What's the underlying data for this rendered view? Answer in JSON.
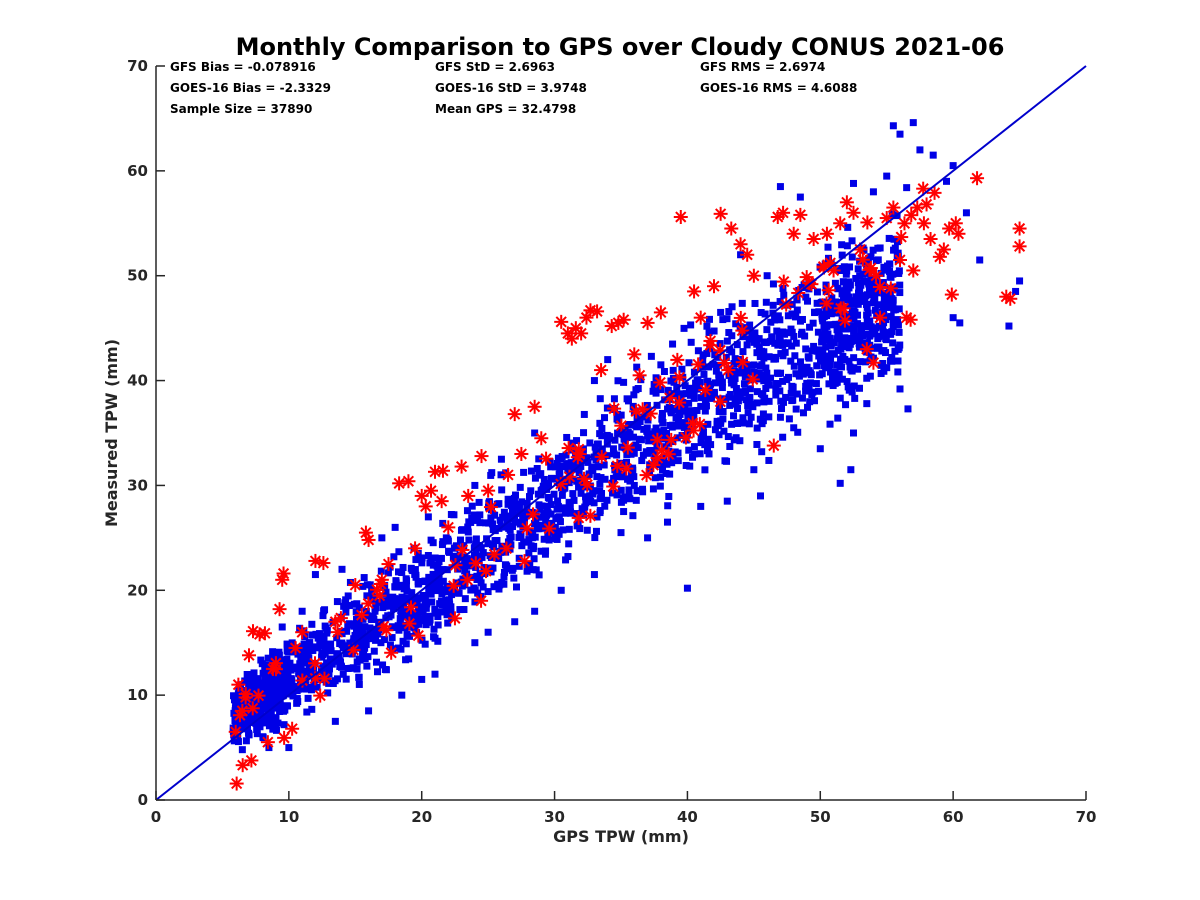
{
  "chart_data": {
    "type": "scatter",
    "title": "Monthly Comparison to GPS over Cloudy CONUS 2021-06",
    "xlabel": "GPS TPW (mm)",
    "ylabel": "Measured TPW (mm)",
    "xlim": [
      0,
      70
    ],
    "ylim": [
      0,
      70
    ],
    "xticks": [
      "0",
      "10",
      "20",
      "30",
      "40",
      "50",
      "60",
      "70"
    ],
    "yticks": [
      "0",
      "10",
      "20",
      "30",
      "40",
      "50",
      "60",
      "70"
    ],
    "grid": false,
    "reference_line": {
      "x": [
        0,
        70
      ],
      "y": [
        0,
        70
      ],
      "color": "#0000cc"
    },
    "stats": [
      [
        "GFS Bias = -0.078916",
        "GFS StD = 2.6963",
        "GFS RMS = 2.6974"
      ],
      [
        "GOES-16 Bias = -2.3329",
        "GOES-16 StD = 3.9748",
        "GOES-16 RMS = 4.6088"
      ],
      [
        "Sample Size = 37890",
        "Mean GPS = 32.4798",
        ""
      ]
    ],
    "series": [
      {
        "marker": "asterisk",
        "color": "#ff0000",
        "points": [
          [
            6.0,
            6.5
          ],
          [
            6.2,
            11.0
          ],
          [
            6.5,
            8.5
          ],
          [
            7.0,
            13.8
          ],
          [
            7.3,
            16.1
          ],
          [
            7.8,
            15.8
          ],
          [
            8.2,
            15.9
          ],
          [
            9.3,
            18.2
          ],
          [
            9.5,
            21.0
          ],
          [
            9.6,
            21.6
          ],
          [
            11.0,
            16.0
          ],
          [
            12.0,
            22.8
          ],
          [
            12.6,
            22.6
          ],
          [
            15.8,
            25.5
          ],
          [
            16.0,
            24.8
          ],
          [
            17.5,
            22.5
          ],
          [
            18.3,
            30.2
          ],
          [
            19.0,
            30.4
          ],
          [
            20.0,
            29.0
          ],
          [
            20.3,
            28.0
          ],
          [
            20.7,
            29.5
          ],
          [
            21.0,
            31.3
          ],
          [
            21.5,
            28.5
          ],
          [
            21.6,
            31.4
          ],
          [
            23.0,
            31.8
          ],
          [
            24.5,
            32.8
          ],
          [
            27.0,
            36.8
          ],
          [
            28.5,
            37.5
          ],
          [
            30.5,
            45.6
          ],
          [
            31.0,
            44.5
          ],
          [
            31.3,
            44.0
          ],
          [
            31.6,
            45.0
          ],
          [
            32.0,
            44.5
          ],
          [
            32.4,
            46.0
          ],
          [
            32.7,
            46.7
          ],
          [
            33.2,
            46.6
          ],
          [
            34.3,
            45.2
          ],
          [
            34.8,
            45.5
          ],
          [
            35.2,
            45.8
          ],
          [
            36.4,
            40.5
          ],
          [
            37.0,
            45.5
          ],
          [
            39.5,
            55.6
          ],
          [
            41.0,
            46.0
          ],
          [
            42.5,
            55.9
          ],
          [
            43.3,
            54.5
          ],
          [
            44.0,
            53.0
          ],
          [
            45.0,
            50.0
          ],
          [
            46.5,
            33.8
          ],
          [
            46.8,
            55.6
          ],
          [
            47.2,
            56.0
          ],
          [
            48.0,
            54.0
          ],
          [
            48.5,
            55.8
          ],
          [
            50.5,
            54.0
          ],
          [
            51.5,
            55.0
          ],
          [
            52.0,
            57.0
          ],
          [
            52.5,
            56.0
          ],
          [
            53.5,
            43.0
          ],
          [
            54.0,
            41.7
          ],
          [
            54.5,
            46.0
          ],
          [
            55.0,
            55.5
          ],
          [
            55.5,
            56.5
          ],
          [
            56.0,
            51.5
          ],
          [
            56.5,
            46.0
          ],
          [
            56.8,
            45.8
          ],
          [
            57.0,
            50.5
          ],
          [
            57.3,
            56.5
          ],
          [
            57.8,
            55.0
          ],
          [
            58.0,
            56.8
          ],
          [
            58.3,
            53.5
          ],
          [
            58.6,
            57.9
          ],
          [
            59.0,
            51.8
          ],
          [
            59.3,
            52.5
          ],
          [
            59.7,
            54.5
          ],
          [
            59.9,
            48.2
          ],
          [
            60.2,
            55.0
          ],
          [
            60.4,
            54.0
          ],
          [
            61.8,
            59.3
          ],
          [
            64.0,
            48.0
          ],
          [
            64.3,
            47.8
          ],
          [
            65.0,
            54.5
          ],
          [
            65.0,
            52.8
          ],
          [
            13.5,
            17.0
          ],
          [
            15.0,
            20.5
          ],
          [
            17.0,
            21.0
          ],
          [
            22.0,
            26.0
          ],
          [
            25.0,
            29.5
          ],
          [
            26.5,
            31.0
          ],
          [
            29.0,
            34.5
          ],
          [
            33.5,
            41.0
          ],
          [
            38.0,
            46.5
          ],
          [
            42.0,
            49.0
          ],
          [
            44.5,
            52.0
          ],
          [
            49.5,
            53.5
          ],
          [
            51.0,
            50.5
          ],
          [
            53.0,
            52.5
          ],
          [
            54.2,
            50.0
          ],
          [
            8.8,
            12.5
          ],
          [
            10.5,
            14.5
          ],
          [
            19.5,
            24.0
          ],
          [
            23.5,
            29.0
          ],
          [
            27.5,
            33.0
          ],
          [
            36.0,
            42.5
          ],
          [
            40.5,
            48.5
          ]
        ]
      },
      {
        "marker": "square",
        "color": "#0000e6",
        "points": [
          [
            57.0,
            64.6
          ],
          [
            55.5,
            64.3
          ],
          [
            56.0,
            63.5
          ],
          [
            57.5,
            62.0
          ],
          [
            58.5,
            61.5
          ],
          [
            60.0,
            60.5
          ],
          [
            48.5,
            57.5
          ],
          [
            47.0,
            58.5
          ],
          [
            52.5,
            58.8
          ],
          [
            55.0,
            59.5
          ],
          [
            54.0,
            58.0
          ],
          [
            56.5,
            58.4
          ],
          [
            59.5,
            59.0
          ],
          [
            61.0,
            56.0
          ],
          [
            62.0,
            51.5
          ],
          [
            65.0,
            49.5
          ],
          [
            64.7,
            48.5
          ],
          [
            64.2,
            45.2
          ],
          [
            60.5,
            45.5
          ],
          [
            60.0,
            46.0
          ],
          [
            56.0,
            39.2
          ],
          [
            56.6,
            37.3
          ],
          [
            53.5,
            37.8
          ],
          [
            52.5,
            35.0
          ],
          [
            52.3,
            31.5
          ],
          [
            51.5,
            30.2
          ],
          [
            45.5,
            29.0
          ],
          [
            43.0,
            28.5
          ],
          [
            40.0,
            20.2
          ],
          [
            37.0,
            25.0
          ],
          [
            36.0,
            30.0
          ],
          [
            33.0,
            21.5
          ],
          [
            30.5,
            20.0
          ],
          [
            28.5,
            18.0
          ],
          [
            27.0,
            17.0
          ],
          [
            24.0,
            15.0
          ],
          [
            21.0,
            12.0
          ],
          [
            18.5,
            10.0
          ],
          [
            16.0,
            8.5
          ],
          [
            13.5,
            7.5
          ],
          [
            10.0,
            5.0
          ],
          [
            8.5,
            5.0
          ],
          [
            6.5,
            4.8
          ],
          [
            47.0,
            36.5
          ],
          [
            50.0,
            33.5
          ],
          [
            48.0,
            35.5
          ],
          [
            49.0,
            39.5
          ],
          [
            45.0,
            31.5
          ],
          [
            38.5,
            26.5
          ],
          [
            41.0,
            28.0
          ],
          [
            35.0,
            25.5
          ],
          [
            25.0,
            16.0
          ],
          [
            20.0,
            11.5
          ],
          [
            30.0,
            26.0
          ],
          [
            40.5,
            33.0
          ],
          [
            50.5,
            42.0
          ],
          [
            53.0,
            44.0
          ],
          [
            55.0,
            47.5
          ],
          [
            44.0,
            52.0
          ],
          [
            46.0,
            50.0
          ],
          [
            42.5,
            46.5
          ],
          [
            38.0,
            41.5
          ],
          [
            34.0,
            42.0
          ],
          [
            33.0,
            40.0
          ],
          [
            28.5,
            35.0
          ],
          [
            26.0,
            32.5
          ],
          [
            24.0,
            30.0
          ],
          [
            20.5,
            27.0
          ],
          [
            18.0,
            26.0
          ],
          [
            17.0,
            25.0
          ],
          [
            14.0,
            22.0
          ],
          [
            12.0,
            21.5
          ],
          [
            11.0,
            18.0
          ],
          [
            9.5,
            16.5
          ],
          [
            8.0,
            13.0
          ],
          [
            7.0,
            9.5
          ],
          [
            6.0,
            7.0
          ]
        ],
        "density_bands": [
          {
            "x": [
              5.8,
              10.0
            ],
            "y_low": [
              4.5,
              6.0
            ],
            "y_high": [
              11.5,
              17.0
            ]
          },
          {
            "x": [
              10.0,
              20.0
            ],
            "y_low": [
              6.0,
              12.0
            ],
            "y_high": [
              17.0,
              27.0
            ]
          },
          {
            "x": [
              20.0,
              30.0
            ],
            "y_low": [
              12.0,
              20.0
            ],
            "y_high": [
              27.0,
              37.0
            ]
          },
          {
            "x": [
              30.0,
              40.0
            ],
            "y_low": [
              20.0,
              28.0
            ],
            "y_high": [
              37.0,
              47.0
            ]
          },
          {
            "x": [
              40.0,
              50.0
            ],
            "y_low": [
              28.0,
              33.0
            ],
            "y_high": [
              47.0,
              55.0
            ]
          },
          {
            "x": [
              50.0,
              56.0
            ],
            "y_low": [
              33.0,
              38.0
            ],
            "y_high": [
              55.0,
              58.0
            ]
          }
        ]
      }
    ]
  }
}
